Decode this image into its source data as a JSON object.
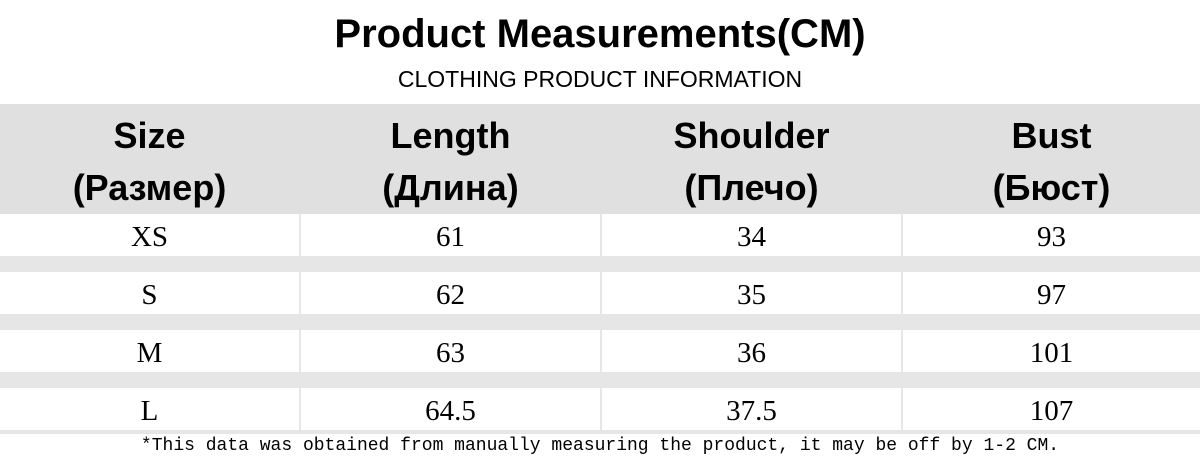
{
  "header": {
    "title": "Product Measurements(CM)",
    "subtitle": "CLOTHING PRODUCT INFORMATION"
  },
  "table": {
    "columns": [
      [
        "Size",
        "(Размер)"
      ],
      [
        "Length",
        "(Длина)"
      ],
      [
        "Shoulder",
        "(Плечо)"
      ],
      [
        "Bust",
        "(Бюст)"
      ]
    ],
    "rows": [
      [
        "XS",
        "61",
        "34",
        "93"
      ],
      [
        "S",
        "62",
        "35",
        "97"
      ],
      [
        "M",
        "63",
        "36",
        "101"
      ],
      [
        "L",
        "64.5",
        "37.5",
        "107"
      ]
    ]
  },
  "footnote": "*This data was obtained from manually measuring the product, it may be off by 1-2 CM."
}
